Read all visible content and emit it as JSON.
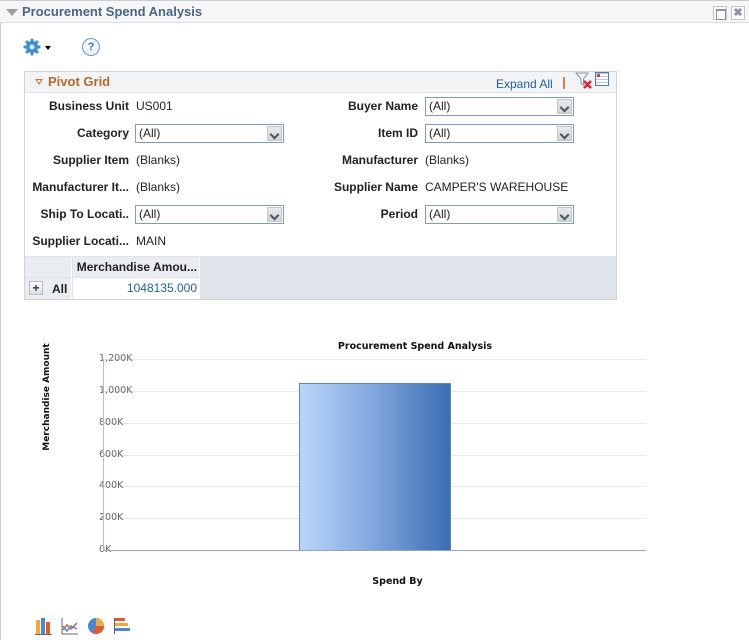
{
  "window": {
    "title": "Procurement Spend Analysis",
    "maximize_icon": "maximize-icon",
    "close_icon": "close-icon",
    "close_glyph": "✖"
  },
  "toolbar": {
    "settings_icon": "gear-icon",
    "help_icon": "help-icon",
    "help_glyph": "?"
  },
  "pivot_grid": {
    "title": "Pivot Grid",
    "expand_all": "Expand All",
    "clear_filter_icon": "clear-filter-icon",
    "grid_view_icon": "grid-view-icon",
    "filters": [
      {
        "label": "Business Unit",
        "type": "text",
        "value": "US001"
      },
      {
        "label": "Buyer Name",
        "type": "select",
        "value": "(All)"
      },
      {
        "label": "Category",
        "type": "select",
        "value": "(All)"
      },
      {
        "label": "Item ID",
        "type": "select",
        "value": "(All)"
      },
      {
        "label": "Supplier Item",
        "type": "text",
        "value": "(Blanks)"
      },
      {
        "label": "Manufacturer",
        "type": "text",
        "value": "(Blanks)"
      },
      {
        "label": "Manufacturer It...",
        "type": "text",
        "value": "(Blanks)"
      },
      {
        "label": "Supplier Name",
        "type": "text",
        "value": "CAMPER'S WAREHOUSE"
      },
      {
        "label": "Ship To Locati..",
        "type": "select",
        "value": "(All)"
      },
      {
        "label": "Period",
        "type": "select",
        "value": "(All)"
      },
      {
        "label": "Supplier Locati...",
        "type": "text",
        "value": "MAIN"
      }
    ],
    "table": {
      "column_header": "Merchandise Amou...",
      "rows": [
        {
          "expand": "+",
          "label": "All",
          "value": "1048135.000"
        }
      ]
    }
  },
  "chart_data": {
    "type": "bar",
    "title": "Procurement Spend Analysis",
    "xlabel": "Spend By",
    "ylabel": "Merchandise Amount",
    "categories": [
      ""
    ],
    "values": [
      1048135
    ],
    "ylim": [
      0,
      1200000
    ],
    "yticks": [
      "0K",
      "200K",
      "400K",
      "600K",
      "800K",
      "1,000K",
      "1,200K"
    ],
    "grid": true,
    "legend": "none",
    "bar_color": "#5b86c4"
  },
  "chart_types": [
    {
      "name": "bar-chart-icon"
    },
    {
      "name": "line-chart-icon"
    },
    {
      "name": "pie-chart-icon"
    },
    {
      "name": "horizontal-bar-chart-icon"
    }
  ]
}
